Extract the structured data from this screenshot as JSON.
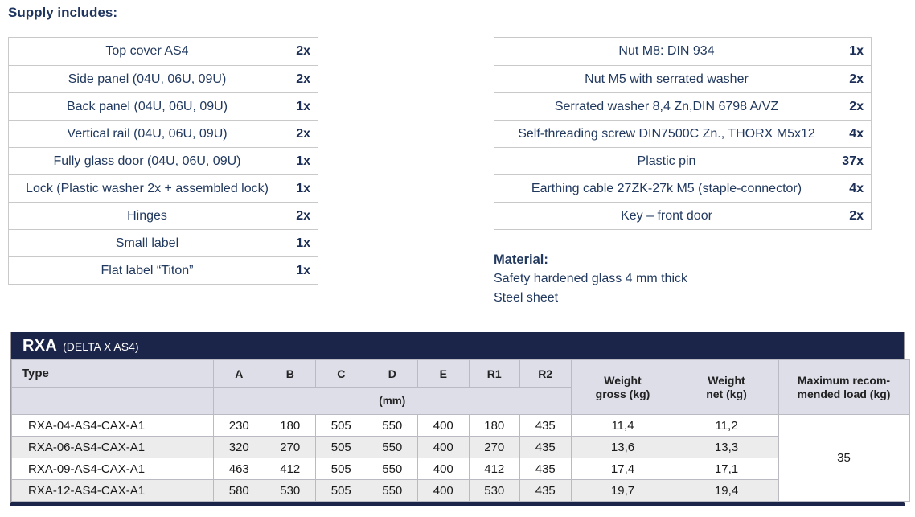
{
  "page": {
    "title": "Supply includes:"
  },
  "supply_left": {
    "rows": [
      {
        "item": "Top cover AS4",
        "qty": "2x"
      },
      {
        "item": "Side panel (04U, 06U, 09U)",
        "qty": "2x"
      },
      {
        "item": "Back panel (04U, 06U, 09U)",
        "qty": "1x"
      },
      {
        "item": "Vertical rail (04U, 06U, 09U)",
        "qty": "2x"
      },
      {
        "item": "Fully glass door (04U, 06U, 09U)",
        "qty": "1x"
      },
      {
        "item": "Lock (Plastic washer 2x + assembled lock)",
        "qty": "1x"
      },
      {
        "item": "Hinges",
        "qty": "2x"
      },
      {
        "item": "Small label",
        "qty": "1x"
      },
      {
        "item": "Flat label “Titon”",
        "qty": "1x"
      }
    ]
  },
  "supply_right": {
    "rows": [
      {
        "item": "Nut M8: DIN 934",
        "qty": "1x"
      },
      {
        "item": "Nut M5 with serrated washer",
        "qty": "2x"
      },
      {
        "item": "Serrated washer 8,4 Zn,DIN 6798 A/VZ",
        "qty": "2x"
      },
      {
        "item": "Self-threading screw DIN7500C Zn., THORX M5x12",
        "qty": "4x"
      },
      {
        "item": "Plastic pin",
        "qty": "37x"
      },
      {
        "item": "Earthing cable 27ZK-27k M5 (staple-connector)",
        "qty": "4x"
      },
      {
        "item": "Key – front door",
        "qty": "2x"
      }
    ]
  },
  "material": {
    "heading": "Material:",
    "line1": "Safety hardened glass 4 mm thick",
    "line2": "Steel sheet"
  },
  "spec_table": {
    "title": "RXA",
    "subtitle": "(DELTA X AS4)",
    "col_type": "Type",
    "dim_headers": [
      "A",
      "B",
      "C",
      "D",
      "E",
      "R1",
      "R2"
    ],
    "unit_label": "(mm)",
    "weight_gross_header": "Weight\ngross (kg)",
    "weight_net_header": "Weight\nnet (kg)",
    "max_load_header": "Maximum recom-\nmended load (kg)",
    "rows": [
      {
        "type": "RXA-04-AS4-CAX-A1",
        "a": "230",
        "b": "180",
        "c": "505",
        "d": "550",
        "e": "400",
        "r1": "180",
        "r2": "435",
        "gross": "11,4",
        "net": "11,2"
      },
      {
        "type": "RXA-06-AS4-CAX-A1",
        "a": "320",
        "b": "270",
        "c": "505",
        "d": "550",
        "e": "400",
        "r1": "270",
        "r2": "435",
        "gross": "13,6",
        "net": "13,3"
      },
      {
        "type": "RXA-09-AS4-CAX-A1",
        "a": "463",
        "b": "412",
        "c": "505",
        "d": "550",
        "e": "400",
        "r1": "412",
        "r2": "435",
        "gross": "17,4",
        "net": "17,1"
      },
      {
        "type": "RXA-12-AS4-CAX-A1",
        "a": "580",
        "b": "530",
        "c": "505",
        "d": "550",
        "e": "400",
        "r1": "530",
        "r2": "435",
        "gross": "19,7",
        "net": "19,4"
      }
    ],
    "max_load": "35"
  },
  "colors": {
    "navy_band": "#1b2449",
    "navy_text": "#21395f",
    "header_bg": "#dddee8",
    "alt_row_bg": "#ececec",
    "border_gray": "#b9bac2"
  }
}
